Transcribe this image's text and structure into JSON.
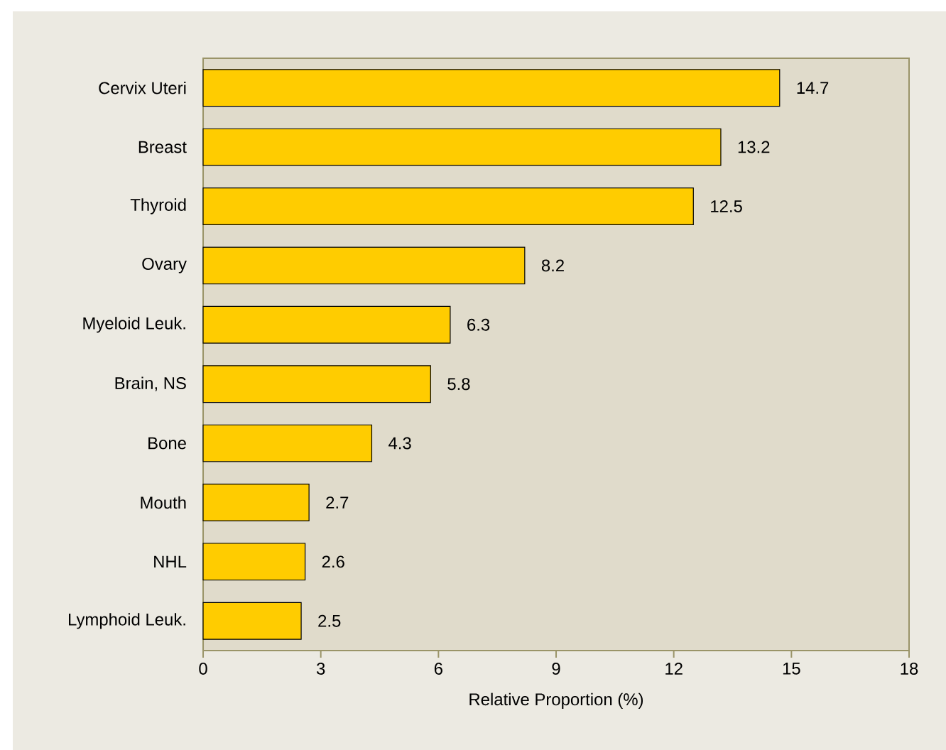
{
  "chart_data": {
    "type": "bar",
    "orientation": "horizontal",
    "xlabel": "Relative Proportion (%)",
    "categories": [
      "Cervix Uteri",
      "Breast",
      "Thyroid",
      "Ovary",
      "Myeloid Leuk.",
      "Brain, NS",
      "Bone",
      "Mouth",
      "NHL",
      "Lymphoid Leuk."
    ],
    "values": [
      14.7,
      13.2,
      12.5,
      8.2,
      6.3,
      5.8,
      4.3,
      2.7,
      2.6,
      2.5
    ],
    "color": "#ffcc00",
    "data_labels": true,
    "xlim": [
      0,
      18
    ],
    "xticks": [
      0,
      3,
      6,
      9,
      12,
      15,
      18
    ],
    "grid": false
  }
}
